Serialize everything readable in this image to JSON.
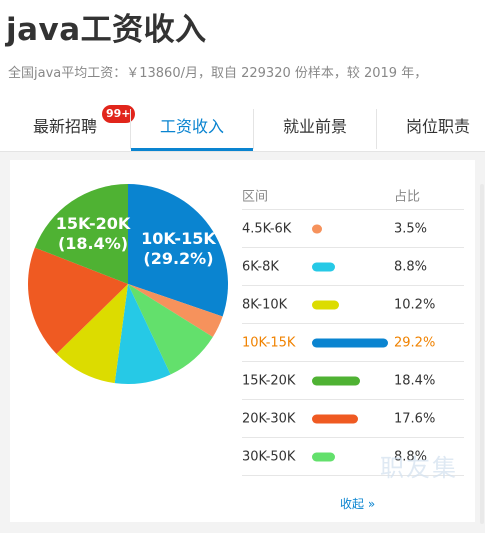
{
  "page_title": "java工资收入",
  "subtitle": "全国java平均工资：￥13860/月，取自 229320 份样本，较 2019 年，",
  "tabs": [
    {
      "label": "最新招聘",
      "badge": "99+"
    },
    {
      "label": "工资收入",
      "active": true
    },
    {
      "label": "就业前景"
    },
    {
      "label": "岗位职责"
    }
  ],
  "table": {
    "header_range": "区间",
    "header_pct": "占比",
    "collapse_label": "收起 »"
  },
  "watermark": "职友集",
  "colors": {
    "accent": "#0a84d0",
    "highlight": "#f08200",
    "badge": "#e1251b"
  },
  "chart_data": {
    "type": "pie",
    "categories": [
      "4.5K-6K",
      "6K-8K",
      "8K-10K",
      "10K-15K",
      "15K-20K",
      "20K-30K",
      "30K-50K"
    ],
    "values": [
      3.5,
      8.8,
      10.2,
      29.2,
      18.4,
      17.6,
      8.8
    ],
    "percent_labels": [
      "3.5%",
      "8.8%",
      "10.2%",
      "29.2%",
      "18.4%",
      "17.6%",
      "8.8%"
    ],
    "colors": [
      "#f6925c",
      "#26c9e6",
      "#dcdc00",
      "#0a84d0",
      "#4fb233",
      "#ef5a22",
      "#63e06c"
    ],
    "highlighted": "10K-15K",
    "slice_labels": [
      {
        "category": "10K-15K",
        "line1": "10K-15K",
        "line2": "(29.2%)"
      },
      {
        "category": "15K-20K",
        "line1": "15K-20K",
        "line2": "(18.4%)"
      }
    ],
    "slice_order": [
      "10K-15K",
      "4.5K-6K",
      "30K-50K",
      "6K-8K",
      "8K-10K",
      "20K-30K",
      "15K-20K"
    ]
  }
}
